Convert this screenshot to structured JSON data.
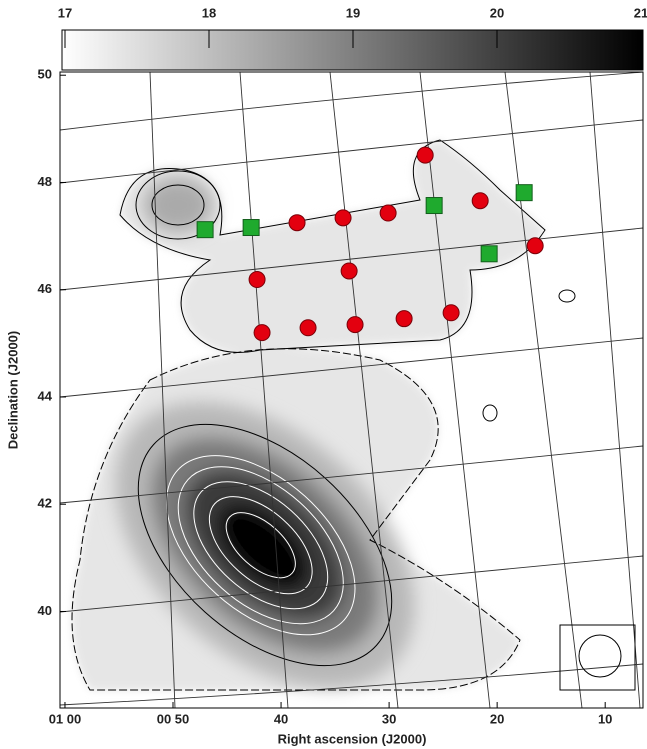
{
  "chart_data": {
    "type": "scatter",
    "xlabel": "Right ascension (J2000)",
    "ylabel": "Declination (J2000)",
    "xlim": [
      60.46,
      6.5
    ],
    "ylim": [
      38.2,
      50.06
    ],
    "xticks": [
      {
        "value": 60,
        "label": "01 00"
      },
      {
        "value": 50,
        "label": "00 50"
      },
      40,
      30,
      20,
      10
    ],
    "yticks": [
      40,
      42,
      44,
      46,
      48,
      50
    ],
    "colorbar": {
      "lim": [
        17,
        21
      ],
      "ticks": [
        17,
        18,
        19,
        20,
        21
      ]
    },
    "series": [
      {
        "color": "#e3000f",
        "marker": "circle",
        "x": [
          26.66,
          21.57,
          34.26,
          30.09,
          38.52,
          16.48,
          33.7,
          42.22,
          41.76,
          37.5,
          33.15,
          28.61,
          24.26
        ],
        "values": [
          48.51,
          47.66,
          47.34,
          47.43,
          47.25,
          46.82,
          46.35,
          46.19,
          45.2,
          45.29,
          45.35,
          45.46,
          45.57
        ]
      },
      {
        "color": "#1faa2e",
        "marker": "square",
        "x": [
          47.03,
          42.77,
          25.83,
          17.5,
          20.74
        ],
        "values": [
          47.12,
          47.16,
          47.57,
          47.81,
          46.67
        ]
      }
    ]
  }
}
